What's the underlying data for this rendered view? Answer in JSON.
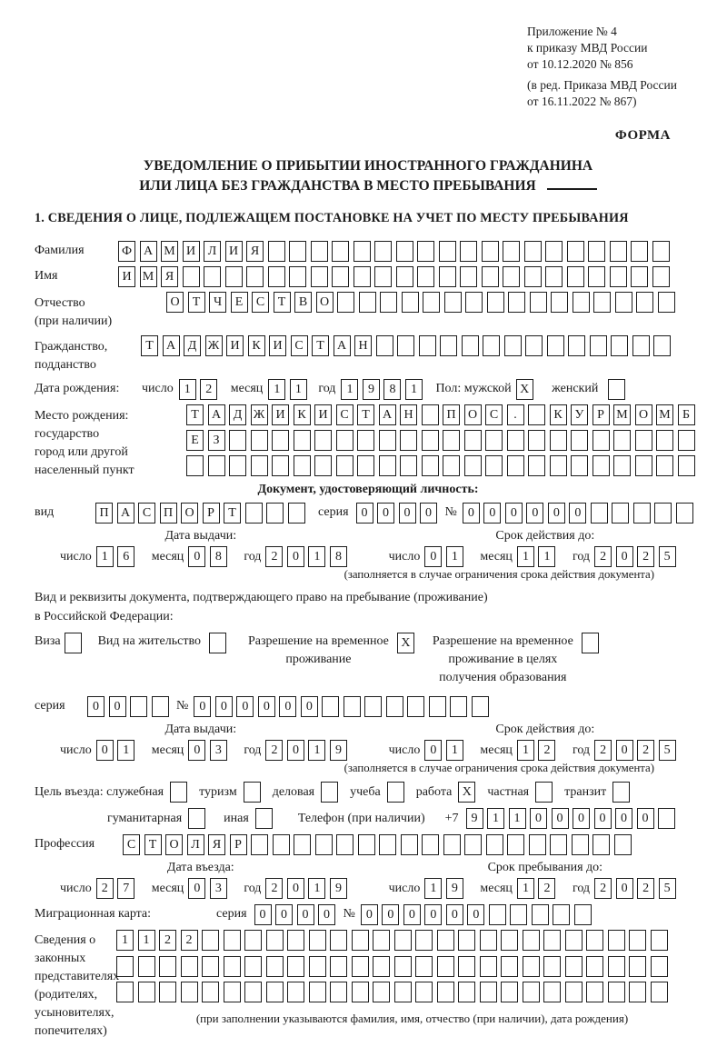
{
  "colors": {
    "ink": "#1c1c1c",
    "paper": "#ffffff"
  },
  "header": {
    "annex_lines": [
      "Приложение № 4",
      "к приказу МВД России",
      "от 10.12.2020 № 856"
    ],
    "edition_lines": [
      "(в ред. Приказа МВД России",
      "от 16.11.2022 № 867)"
    ],
    "form_label": "ФОРМА"
  },
  "title": {
    "line1": "УВЕДОМЛЕНИЕ О ПРИБЫТИИ ИНОСТРАННОГО ГРАЖДАНИНА",
    "line2": "ИЛИ ЛИЦА БЕЗ ГРАЖДАНСТВА В МЕСТО ПРЕБЫВАНИЯ"
  },
  "section1": {
    "heading": "1. СВЕДЕНИЯ О ЛИЦЕ, ПОДЛЕЖАЩЕМ ПОСТАНОВКЕ НА УЧЕТ ПО МЕСТУ ПРЕБЫВАНИЯ"
  },
  "labels": {
    "day": "число",
    "month": "месяц",
    "year": "год",
    "series": "серия",
    "number": "№"
  },
  "surname": {
    "label": "Фамилия",
    "text": "ФАМИЛИЯ",
    "cells": 26
  },
  "firstname": {
    "label": "Имя",
    "text": "ИМЯ",
    "cells": 26
  },
  "patronymic": {
    "label": "Отчество",
    "label2": "(при наличии)",
    "text": "ОТЧЕСТВО",
    "cells": 24
  },
  "citizenship": {
    "label": "Гражданство,",
    "label2": "подданство",
    "text": "ТАДЖИКИСТАН",
    "cells": 25
  },
  "birth": {
    "label": "Дата рождения:",
    "day": {
      "text": "12",
      "cells": 2
    },
    "month": {
      "text": "11",
      "cells": 2
    },
    "year": {
      "text": "1981",
      "cells": 4
    }
  },
  "sex": {
    "label": "Пол: мужской",
    "male_mark": "X",
    "female_label": "женский",
    "female_mark": ""
  },
  "birth_place": {
    "label_lines": [
      "Место рождения:",
      "государство",
      "город или другой",
      "населенный пункт"
    ],
    "row1": {
      "text": "ТАДЖИКИСТАН ПОС. КУРМОМБ",
      "cells": 24
    },
    "row2": {
      "text": "ЕЗ",
      "cells": 24
    },
    "row3": {
      "text": "",
      "cells": 24
    }
  },
  "identity": {
    "heading": "Документ, удостоверяющий личность:",
    "kind_label": "вид",
    "kind": {
      "text": "ПАСПОРТ",
      "cells": 10
    },
    "series": {
      "text": "0000",
      "cells": 4
    },
    "number": {
      "text": "000000",
      "cells": 11
    },
    "issue_title": "Дата выдачи:",
    "issue_day": {
      "text": "16",
      "cells": 2
    },
    "issue_month": {
      "text": "08",
      "cells": 2
    },
    "issue_year": {
      "text": "2018",
      "cells": 4
    },
    "valid_title": "Срок действия до:",
    "valid_day": {
      "text": "01",
      "cells": 2
    },
    "valid_month": {
      "text": "11",
      "cells": 2
    },
    "valid_year": {
      "text": "2025",
      "cells": 4
    },
    "note": "(заполняется в случае ограничения срока действия документа)"
  },
  "residence": {
    "heading1": "Вид и реквизиты документа, подтверждающего право на пребывание (проживание)",
    "heading2": "в Российской Федерации:",
    "opt1": {
      "line1": "Виза",
      "mark": ""
    },
    "opt2": {
      "line1": "Вид на жительство",
      "mark": ""
    },
    "opt3": {
      "line1": "Разрешение на временное",
      "line2": "проживание",
      "mark": "X"
    },
    "opt4": {
      "line1": "Разрешение на временное",
      "line2": "проживание в целях",
      "line3": "получения образования",
      "mark": ""
    },
    "series": {
      "text": "00",
      "cells": 4
    },
    "number": {
      "text": "000000",
      "cells": 14
    },
    "issue_title": "Дата выдачи:",
    "issue_day": {
      "text": "01",
      "cells": 2
    },
    "issue_month": {
      "text": "03",
      "cells": 2
    },
    "issue_year": {
      "text": "2019",
      "cells": 4
    },
    "valid_title": "Срок действия до:",
    "valid_day": {
      "text": "01",
      "cells": 2
    },
    "valid_month": {
      "text": "12",
      "cells": 2
    },
    "valid_year": {
      "text": "2025",
      "cells": 4
    },
    "note": "(заполняется в случае ограничения срока действия документа)"
  },
  "purpose": {
    "label": "Цель въезда: служебная",
    "opts_row1": [
      {
        "label": "туризм",
        "mark": ""
      },
      {
        "label": "деловая",
        "mark": ""
      },
      {
        "label": "учеба",
        "mark": ""
      },
      {
        "label": "работа",
        "mark": "X"
      },
      {
        "label": "частная",
        "mark": ""
      },
      {
        "label": "транзит",
        "mark": ""
      }
    ],
    "first_mark": "",
    "opts_row2": [
      {
        "label": "гуманитарная",
        "mark": ""
      },
      {
        "label": "иная",
        "mark": ""
      }
    ],
    "phone_label": "Телефон (при наличии)",
    "phone_prefix": "+7",
    "phone": {
      "text": "911000000",
      "cells": 10
    }
  },
  "profession": {
    "label": "Профессия",
    "text": "СТОЛЯР",
    "cells": 24
  },
  "entry": {
    "date_title": "Дата въезда:",
    "date_day": {
      "text": "27",
      "cells": 2
    },
    "date_month": {
      "text": "03",
      "cells": 2
    },
    "date_year": {
      "text": "2019",
      "cells": 4
    },
    "stay_title": "Срок пребывания до:",
    "stay_day": {
      "text": "19",
      "cells": 2
    },
    "stay_month": {
      "text": "12",
      "cells": 2
    },
    "stay_year": {
      "text": "2025",
      "cells": 4
    }
  },
  "migration_card": {
    "label": "Миграционная карта:",
    "series": {
      "text": "0000",
      "cells": 4
    },
    "number": {
      "text": "000000",
      "cells": 11
    }
  },
  "representatives": {
    "label_lines": [
      "Сведения о",
      "законных",
      "представителях",
      "(родителях,",
      "усыновителях,",
      "попечителях)"
    ],
    "row1": {
      "text": "1122",
      "cells": 26
    },
    "row2": {
      "text": "",
      "cells": 26
    },
    "row3": {
      "text": "",
      "cells": 26
    },
    "note": "(при заполнении указываются фамилия, имя, отчество (при наличии), дата рождения)"
  }
}
